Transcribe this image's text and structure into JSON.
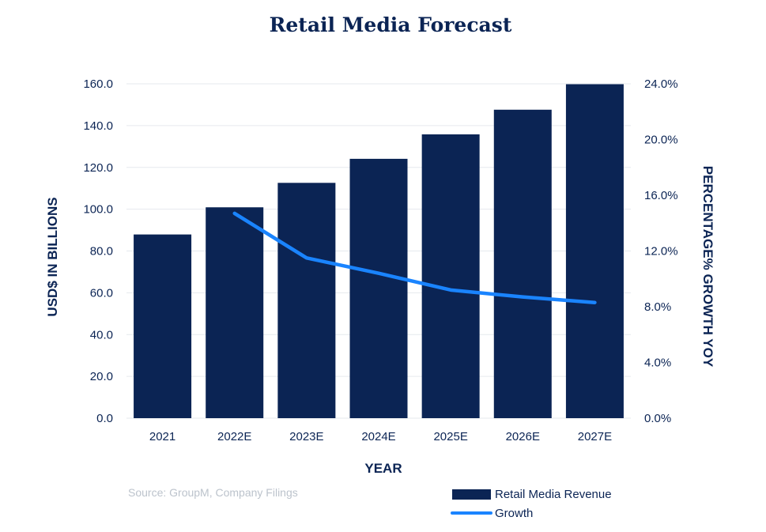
{
  "chart_data": {
    "type": "bar",
    "title": "Retail Media Forecast",
    "categories": [
      "2021",
      "2022E",
      "2023E",
      "2024E",
      "2025E",
      "2026E",
      "2027E"
    ],
    "series": [
      {
        "name": "Retail Media Revenue",
        "type": "bar",
        "axis": "left",
        "color": "#0b2454",
        "values": [
          87.9,
          100.9,
          112.6,
          124.1,
          135.8,
          147.6,
          159.8
        ]
      },
      {
        "name": "Growth",
        "type": "line",
        "axis": "right",
        "color": "#1a84ff",
        "values": [
          null,
          14.7,
          11.5,
          10.4,
          9.2,
          8.7,
          8.3
        ]
      }
    ],
    "xlabel": "YEAR",
    "ylabel": "USD$ IN BILLIONS",
    "ylabel_right": "PERCENTAGE% GROWTH YOY",
    "ylim": [
      0,
      160
    ],
    "ylim_right": [
      0,
      24
    ],
    "yticks": [
      "0.0",
      "20.0",
      "40.0",
      "60.0",
      "80.0",
      "100.0",
      "120.0",
      "140.0",
      "160.0"
    ],
    "yticks_right": [
      "0.0%",
      "4.0%",
      "8.0%",
      "12.0%",
      "16.0%",
      "20.0%",
      "24.0%"
    ],
    "grid": true,
    "legend": "bottom-right"
  },
  "source_note": "Source: GroupM, Company Filings"
}
